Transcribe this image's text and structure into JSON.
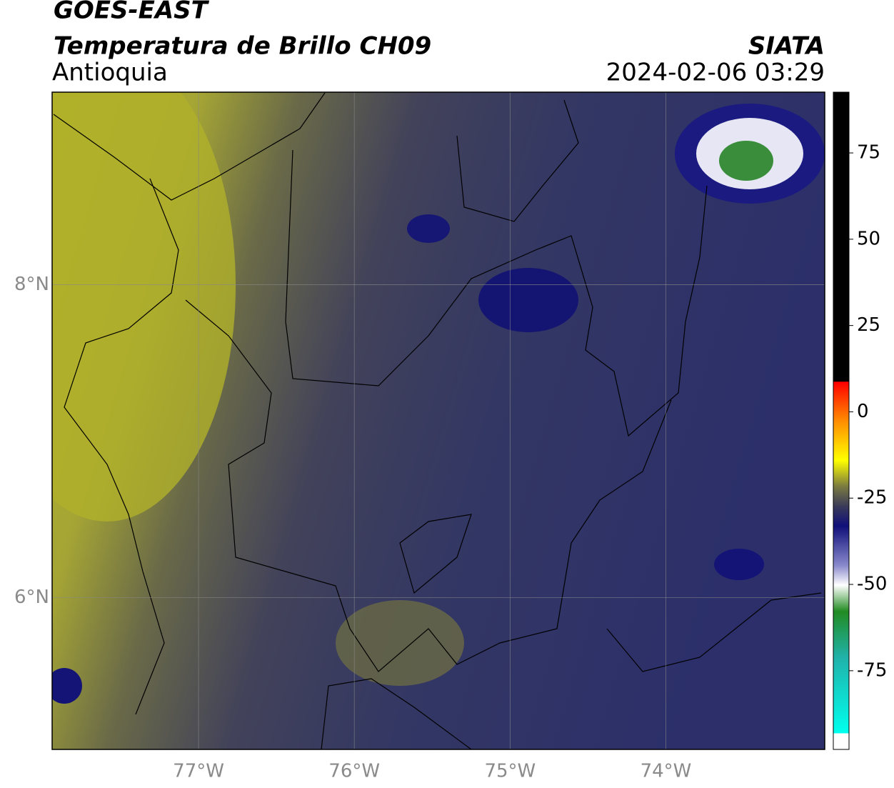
{
  "header": {
    "satellite": "GOES-EAST",
    "product": "Temperatura de Brillo CH09",
    "region": "Antioquia",
    "source": "SIATA",
    "datetime": "2024-02-06 03:29"
  },
  "map": {
    "lonlim": [
      -77.94,
      -72.98
    ],
    "latlim": [
      5.03,
      9.23
    ],
    "lon_ticks": [
      {
        "value": -77,
        "label": "77°W"
      },
      {
        "value": -76,
        "label": "76°W"
      },
      {
        "value": -75,
        "label": "75°W"
      },
      {
        "value": -74,
        "label": "74°W"
      }
    ],
    "lat_ticks": [
      {
        "value": 8,
        "label": "8°N"
      },
      {
        "value": 6,
        "label": "6°N"
      }
    ],
    "grid": true
  },
  "colorbar": {
    "lim": [
      -97.8,
      92.6
    ],
    "ticks": [
      75,
      50,
      25,
      0,
      -25,
      -50,
      -75
    ]
  }
}
